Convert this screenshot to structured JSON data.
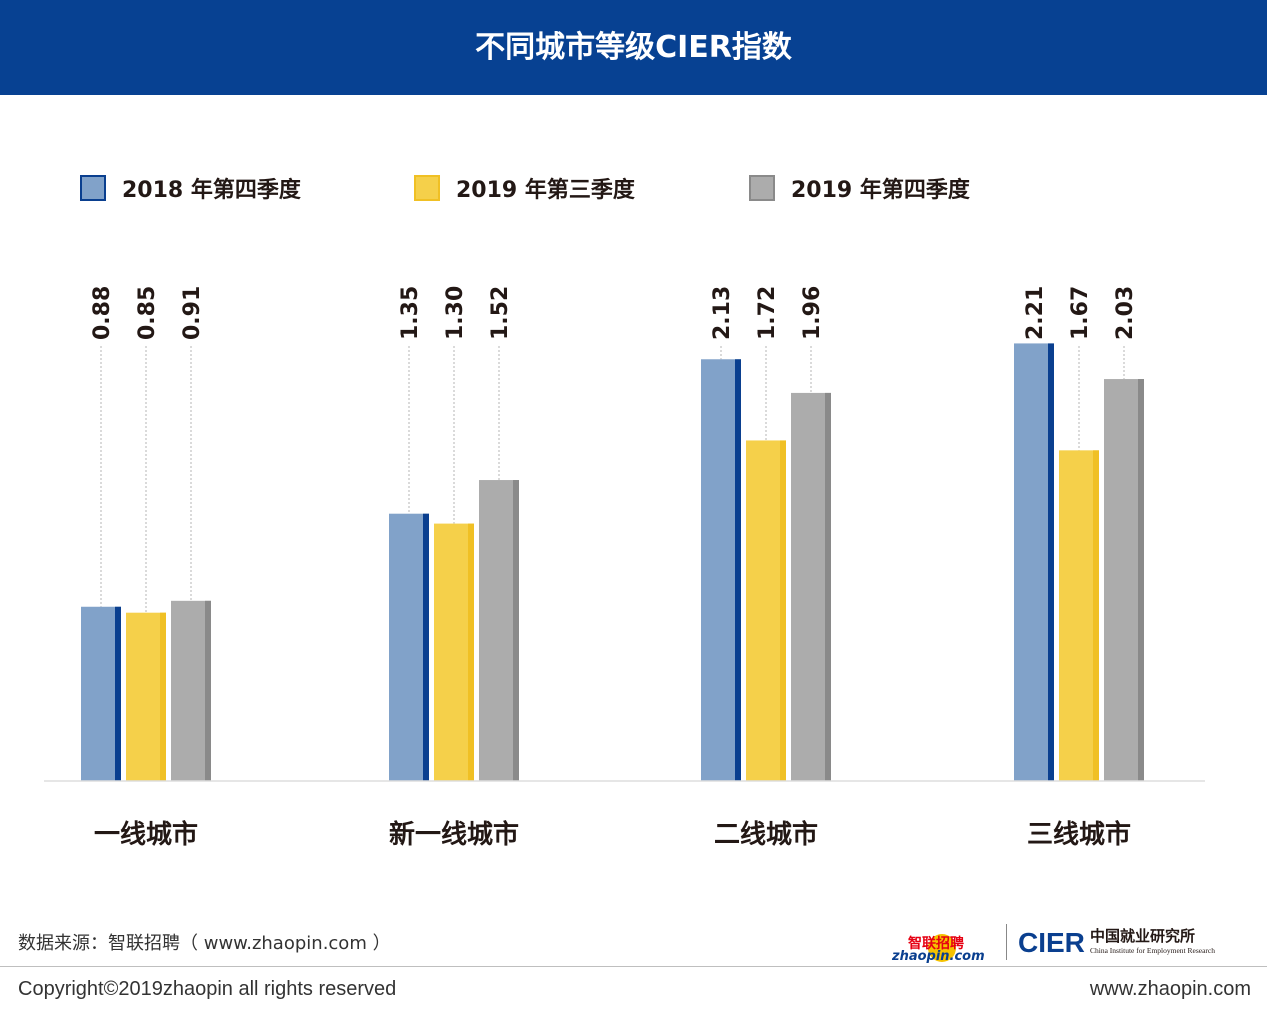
{
  "title": "不同城市等级CIER指数",
  "chart_data": {
    "type": "bar",
    "title": "不同城市等级CIER指数",
    "categories": [
      "一线城市",
      "新一线城市",
      "二线城市",
      "三线城市"
    ],
    "series": [
      {
        "name": "2018 年第四季度",
        "values": [
          0.88,
          1.35,
          2.13,
          2.21
        ],
        "color": "#81a2c9",
        "edge": "#0a3f8f"
      },
      {
        "name": "2019 年第三季度",
        "values": [
          0.85,
          1.3,
          1.72,
          1.67
        ],
        "color": "#f5d04a",
        "edge": "#f0c024"
      },
      {
        "name": "2019 年第四季度",
        "values": [
          0.91,
          1.52,
          1.96,
          2.03
        ],
        "color": "#acacac",
        "edge": "#8a8a8a"
      }
    ],
    "value_labels": [
      [
        "0.88",
        "1.35",
        "2.13",
        "2.21"
      ],
      [
        "0.85",
        "1.30",
        "1.72",
        "1.67"
      ],
      [
        "0.91",
        "1.52",
        "1.96",
        "2.03"
      ]
    ],
    "xlabel": "",
    "ylabel": "",
    "legend": "top",
    "grid": false
  },
  "source": "数据来源：智联招聘（ www.zhaopin.com ）",
  "footer": {
    "copyright": "Copyright©2019zhaopin all rights reserved",
    "website": "www.zhaopin.com"
  },
  "logos": {
    "zhaopin_cn": "智联招聘",
    "zhaopin_en": "zhaopin.com",
    "cier": "CIER",
    "cier_cn": "中国就业研究所",
    "cier_en": "China Institute for Employment Research"
  }
}
